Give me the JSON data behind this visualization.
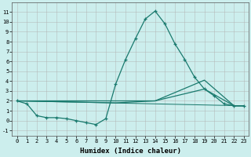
{
  "xlabel": "Humidex (Indice chaleur)",
  "ylabel": "",
  "xlim": [
    -0.5,
    23.5
  ],
  "ylim": [
    -1.5,
    12.0
  ],
  "yticks": [
    -1,
    0,
    1,
    2,
    3,
    4,
    5,
    6,
    7,
    8,
    9,
    10,
    11
  ],
  "xticks": [
    0,
    1,
    2,
    3,
    4,
    5,
    6,
    7,
    8,
    9,
    10,
    11,
    12,
    13,
    14,
    15,
    16,
    17,
    18,
    19,
    20,
    21,
    22,
    23
  ],
  "background_color": "#cceeed",
  "grid_color": "#b0b0b0",
  "line_color": "#1a7a6e",
  "line1_x": [
    0,
    1,
    2,
    3,
    4,
    5,
    6,
    7,
    8,
    9,
    10,
    11,
    12,
    13,
    14,
    15,
    16,
    17,
    18,
    19,
    20,
    21,
    22,
    23
  ],
  "line1_y": [
    2.0,
    1.7,
    0.5,
    0.3,
    0.3,
    0.2,
    0.0,
    -0.2,
    -0.4,
    0.2,
    3.7,
    6.2,
    8.3,
    10.3,
    11.1,
    9.8,
    7.8,
    6.2,
    4.4,
    3.2,
    2.5,
    1.7,
    1.5,
    1.5
  ],
  "line2_x": [
    0,
    10,
    14,
    19,
    22,
    23
  ],
  "line2_y": [
    2.0,
    1.8,
    2.0,
    4.1,
    1.5,
    1.5
  ],
  "line3_x": [
    0,
    10,
    14,
    19,
    22,
    23
  ],
  "line3_y": [
    2.0,
    2.0,
    2.0,
    3.2,
    1.5,
    1.5
  ],
  "line4_x": [
    0,
    23
  ],
  "line4_y": [
    2.0,
    1.5
  ],
  "tick_fontsize": 5.0,
  "xlabel_fontsize": 6.5,
  "lw": 0.9
}
